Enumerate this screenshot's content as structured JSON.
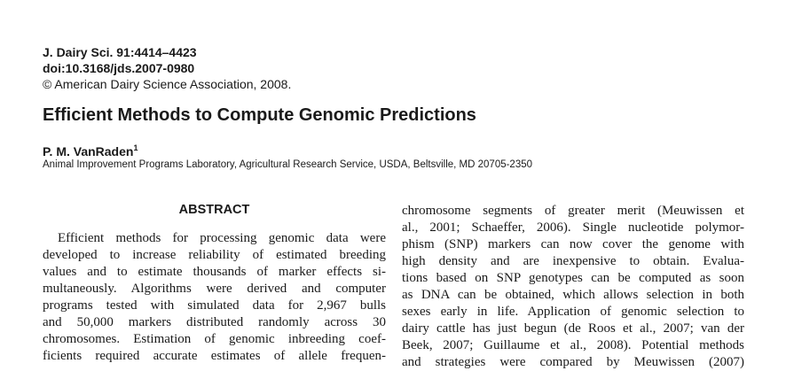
{
  "header": {
    "journal_ref": "J. Dairy Sci. 91:4414–4423",
    "doi": "doi:10.3168/jds.2007-0980",
    "copyright": "© American Dairy Science Association, 2008."
  },
  "title": "Efficient Methods to Compute Genomic Predictions",
  "author": {
    "name": "P. M. VanRaden",
    "footnote_mark": "1"
  },
  "affiliation": "Animal Improvement Programs Laboratory, Agricultural Research Service, USDA, Beltsville, MD 20705-2350",
  "abstract": {
    "heading": "ABSTRACT",
    "lines": [
      "Efficient methods for processing genomic data were",
      "developed to increase reliability of estimated breeding",
      "values and to estimate thousands of marker effects si-",
      "multaneously. Algorithms were derived and computer",
      "programs tested with simulated data for 2,967 bulls",
      "and 50,000 markers distributed randomly across 30",
      "chromosomes. Estimation of genomic inbreeding coef-",
      "ficients required accurate estimates of allele frequen-"
    ]
  },
  "body": {
    "lines": [
      "chromosome segments of greater merit (Meuwissen et",
      "al., 2001; Schaeffer, 2006). Single nucleotide polymor-",
      "phism (SNP) markers can now cover the genome with",
      "high density and are inexpensive to obtain. Evalua-",
      "tions based on SNP genotypes can be computed as soon",
      "as DNA can be obtained, which allows selection in both",
      "sexes early in life. Application of genomic selection to",
      "dairy cattle has just begun (de Roos et al., 2007; van der",
      "Beek, 2007; Guillaume et al., 2008). Potential methods",
      "and strategies were compared by Meuwissen (2007)"
    ]
  }
}
